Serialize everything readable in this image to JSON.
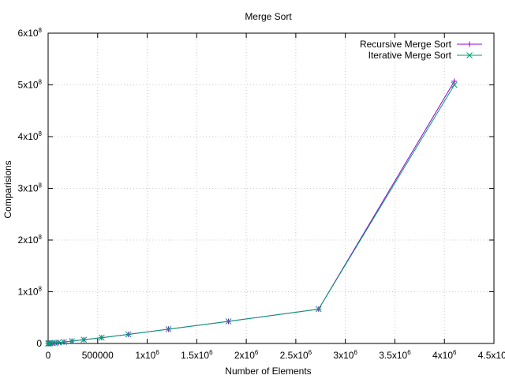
{
  "chart_data": {
    "type": "line",
    "title": "Merge Sort",
    "xlabel": "Number of Elements",
    "ylabel": "Comparisions",
    "xlim": [
      0,
      4500000
    ],
    "ylim": [
      0,
      600000000
    ],
    "grid": true,
    "legend_position": "top-right",
    "x_ticks": [
      {
        "value": 0,
        "base": "0",
        "exp": ""
      },
      {
        "value": 500000,
        "base": "500000",
        "exp": ""
      },
      {
        "value": 1000000,
        "base": "1x10",
        "exp": "6"
      },
      {
        "value": 1500000,
        "base": "1.5x10",
        "exp": "6"
      },
      {
        "value": 2000000,
        "base": "2x10",
        "exp": "6"
      },
      {
        "value": 2500000,
        "base": "2.5x10",
        "exp": "6"
      },
      {
        "value": 3000000,
        "base": "3x10",
        "exp": "6"
      },
      {
        "value": 3500000,
        "base": "3.5x10",
        "exp": "6"
      },
      {
        "value": 4000000,
        "base": "4x10",
        "exp": "6"
      },
      {
        "value": 4500000,
        "base": "4.5x10",
        "exp": "6"
      }
    ],
    "y_ticks": [
      {
        "value": 0,
        "base": "0",
        "exp": ""
      },
      {
        "value": 100000000,
        "base": "1x10",
        "exp": "8"
      },
      {
        "value": 200000000,
        "base": "2x10",
        "exp": "8"
      },
      {
        "value": 300000000,
        "base": "3x10",
        "exp": "8"
      },
      {
        "value": 400000000,
        "base": "4x10",
        "exp": "8"
      },
      {
        "value": 500000000,
        "base": "5x10",
        "exp": "8"
      },
      {
        "value": 600000000,
        "base": "6x10",
        "exp": "8"
      }
    ],
    "series": [
      {
        "name": "Recursive Merge Sort",
        "color": "#9400d3",
        "marker": "plus",
        "x": [
          1000,
          2000,
          5000,
          10000,
          20000,
          40000,
          70000,
          105000,
          160000,
          240000,
          360000,
          540000,
          810000,
          1215000,
          1820000,
          2730000,
          4100000
        ],
        "y": [
          10000,
          22000,
          60000,
          130000,
          290000,
          600000,
          1150000,
          1800000,
          2900000,
          4600000,
          7200000,
          11200000,
          17500000,
          27700000,
          42700000,
          66400000,
          507000000
        ]
      },
      {
        "name": "Iterative Merge Sort",
        "color": "#009e73",
        "marker": "cross",
        "x": [
          1000,
          2000,
          5000,
          10000,
          20000,
          40000,
          70000,
          105000,
          160000,
          240000,
          360000,
          540000,
          810000,
          1215000,
          1820000,
          2730000,
          4100000
        ],
        "y": [
          10000,
          22000,
          60000,
          130000,
          290000,
          600000,
          1150000,
          1800000,
          2900000,
          4600000,
          7200000,
          11200000,
          17500000,
          27700000,
          42700000,
          66400000,
          500000000
        ]
      }
    ]
  }
}
